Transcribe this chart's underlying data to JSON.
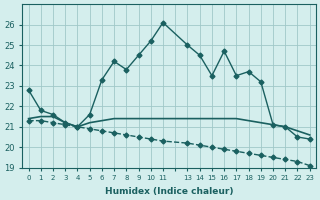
{
  "xlabel": "Humidex (Indice chaleur)",
  "ylabel": "",
  "bg_color": "#d4eeed",
  "grid_color": "#a0c8c8",
  "line_color": "#1a6060",
  "ylim": [
    19,
    27
  ],
  "yticks": [
    19,
    20,
    21,
    22,
    23,
    24,
    25,
    26
  ],
  "xtick_labels": [
    "0",
    "1",
    "2",
    "3",
    "4",
    "5",
    "6",
    "7",
    "8",
    "9",
    "10",
    "11",
    "",
    "13",
    "14",
    "15",
    "16",
    "17",
    "18",
    "19",
    "20",
    "21",
    "22",
    "23"
  ],
  "curve1_x": [
    0,
    1,
    2,
    3,
    4,
    5,
    6,
    7,
    8,
    9,
    10,
    11,
    13,
    14,
    15,
    16,
    17,
    18,
    19,
    20,
    21,
    22,
    23
  ],
  "curve1_y": [
    22.8,
    21.8,
    21.6,
    21.2,
    21.0,
    21.6,
    23.3,
    24.2,
    23.8,
    24.5,
    25.2,
    26.1,
    25.0,
    24.5,
    23.5,
    24.7,
    23.5,
    23.7,
    23.2,
    21.1,
    21.0,
    20.5,
    20.4
  ],
  "curve2_x": [
    0,
    1,
    2,
    3,
    4,
    5,
    6,
    7,
    8,
    9,
    10,
    11,
    13,
    14,
    15,
    16,
    17,
    18,
    19,
    20,
    21,
    22,
    23
  ],
  "curve2_y": [
    21.4,
    21.5,
    21.5,
    21.2,
    21.0,
    21.2,
    21.3,
    21.4,
    21.4,
    21.4,
    21.4,
    21.4,
    21.4,
    21.4,
    21.4,
    21.4,
    21.4,
    21.3,
    21.2,
    21.1,
    21.0,
    20.8,
    20.6
  ],
  "curve3_x": [
    0,
    1,
    2,
    3,
    4,
    5,
    6,
    7,
    8,
    9,
    10,
    11,
    13,
    14,
    15,
    16,
    17,
    18,
    19,
    20,
    21,
    22,
    23
  ],
  "curve3_y": [
    21.3,
    21.3,
    21.2,
    21.1,
    21.0,
    20.9,
    20.8,
    20.7,
    20.6,
    20.5,
    20.4,
    20.3,
    20.2,
    20.1,
    20.0,
    19.9,
    19.8,
    19.7,
    19.6,
    19.5,
    19.4,
    19.3,
    19.1
  ]
}
